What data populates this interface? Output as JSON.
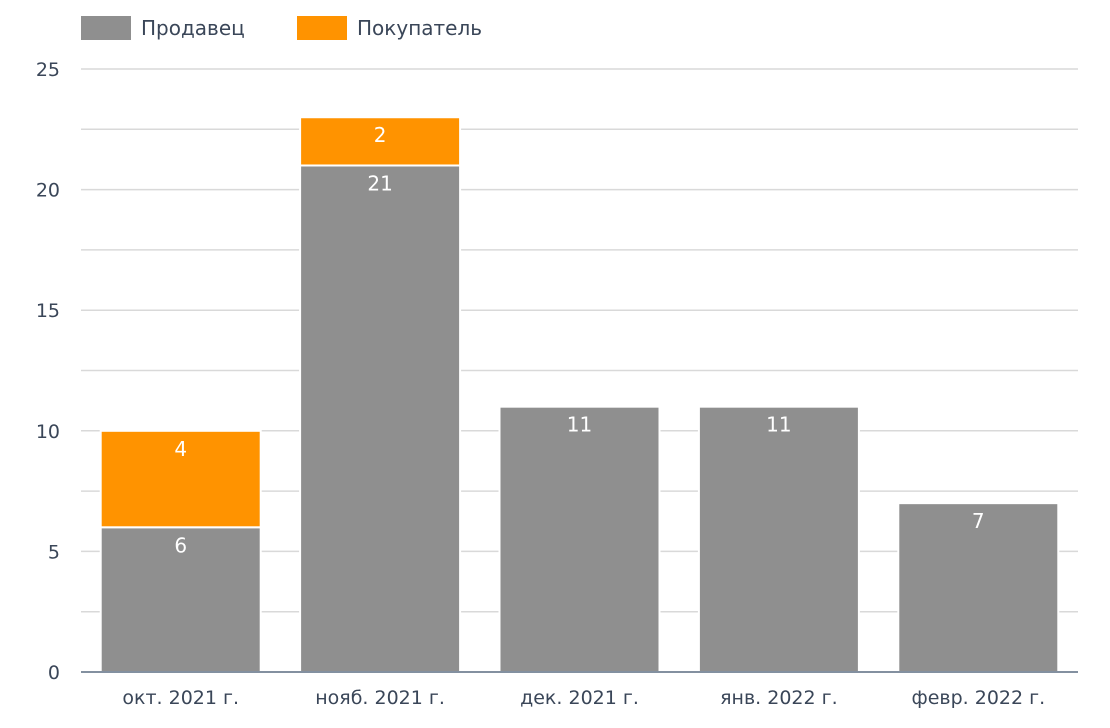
{
  "chart_data": {
    "type": "bar",
    "stacked": true,
    "categories": [
      "окт. 2021 г.",
      "нояб. 2021 г.",
      "дек. 2021 г.",
      "янв. 2022 г.",
      "февр. 2022 г."
    ],
    "series": [
      {
        "name": "Продавец",
        "color": "#8f8f8f",
        "values": [
          6,
          21,
          11,
          11,
          7
        ]
      },
      {
        "name": "Покупатель",
        "color": "#ff9300",
        "values": [
          4,
          2,
          0,
          0,
          0
        ]
      }
    ],
    "ylim": [
      0,
      25
    ],
    "yticks": [
      0,
      5,
      10,
      15,
      20,
      25
    ],
    "grid": true,
    "legend": "top-left"
  }
}
